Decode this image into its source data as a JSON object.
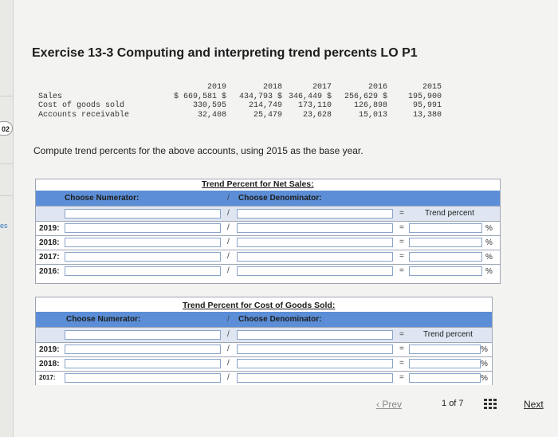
{
  "side": {
    "badge": "02",
    "label": "es"
  },
  "title": "Exercise 13-3 Computing and interpreting trend percents LO P1",
  "accounts": {
    "years": [
      "2019",
      "2018",
      "2017",
      "2016",
      "2015"
    ],
    "rows": [
      {
        "label": "Sales",
        "values": [
          "$ 669,581 $",
          "434,793 $",
          "346,449 $",
          "256,629 $",
          "195,900"
        ]
      },
      {
        "label": "Cost of goods sold",
        "values": [
          "330,595",
          "214,749",
          "173,110",
          "126,898",
          "95,991"
        ]
      },
      {
        "label": "Accounts receivable",
        "values": [
          "32,408",
          "25,479",
          "23,628",
          "15,013",
          "13,380"
        ]
      }
    ]
  },
  "instruction": "Compute trend percents for the above accounts, using 2015 as the base year.",
  "sales_section": {
    "title": "Trend Percent for Net Sales:",
    "numerator_label": "Choose Numerator:",
    "slash": "/",
    "denominator_label": "Choose Denominator:",
    "trend_label": "Trend percent",
    "eq": "=",
    "pct": "%",
    "years": [
      "2019:",
      "2018:",
      "2017:",
      "2016:"
    ]
  },
  "cogs_section": {
    "title": "Trend Percent for Cost of Goods Sold:",
    "numerator_label": "Choose Numerator:",
    "slash": "/",
    "denominator_label": "Choose Denominator:",
    "trend_label": "Trend percent",
    "eq": "=",
    "pct": "%",
    "years": [
      "2019:",
      "2018:",
      "2017:"
    ]
  },
  "nav": {
    "prev": "Prev",
    "page": "1",
    "of": "of 7",
    "next": "Next"
  }
}
